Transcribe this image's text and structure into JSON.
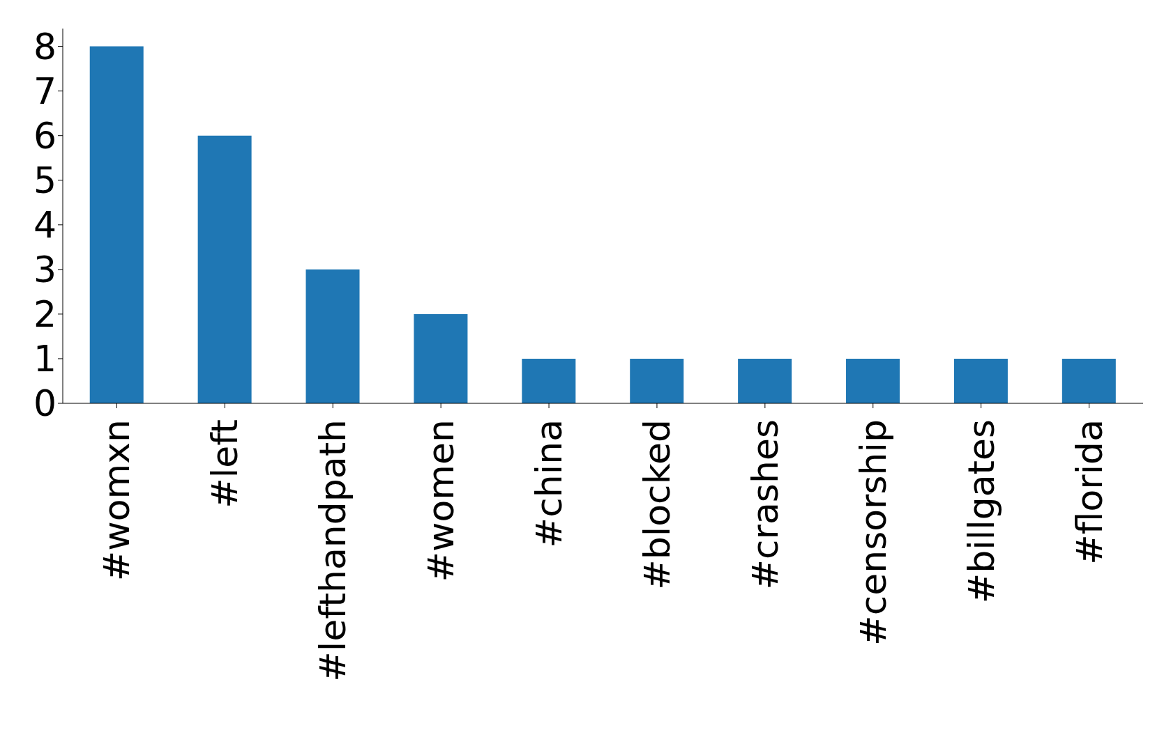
{
  "chart_data": {
    "type": "bar",
    "categories": [
      "#womxn",
      "#left",
      "#lefthandpath",
      "#women",
      "#china",
      "#blocked",
      "#crashes",
      "#censorship",
      "#billgates",
      "#florida"
    ],
    "values": [
      8,
      6,
      3,
      2,
      1,
      1,
      1,
      1,
      1,
      1
    ],
    "color": "#1f77b4",
    "ylim": [
      0,
      8.4
    ],
    "yticks": [
      0,
      1,
      2,
      3,
      4,
      5,
      6,
      7,
      8
    ],
    "grid": false,
    "legend": false
  }
}
